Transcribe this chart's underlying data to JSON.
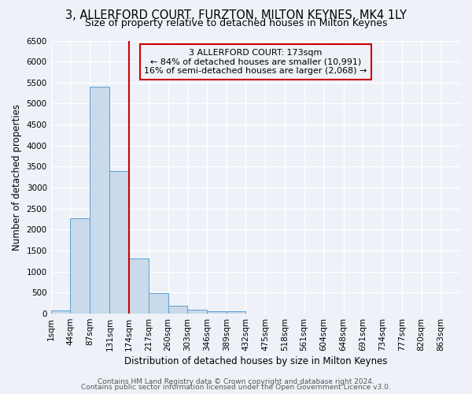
{
  "title": "3, ALLERFORD COURT, FURZTON, MILTON KEYNES, MK4 1LY",
  "subtitle": "Size of property relative to detached houses in Milton Keynes",
  "xlabel": "Distribution of detached houses by size in Milton Keynes",
  "ylabel": "Number of detached properties",
  "bin_labels": [
    "1sqm",
    "44sqm",
    "87sqm",
    "131sqm",
    "174sqm",
    "217sqm",
    "260sqm",
    "303sqm",
    "346sqm",
    "389sqm",
    "432sqm",
    "475sqm",
    "518sqm",
    "561sqm",
    "604sqm",
    "648sqm",
    "691sqm",
    "734sqm",
    "777sqm",
    "820sqm",
    "863sqm"
  ],
  "bin_edges": [
    1,
    44,
    87,
    131,
    174,
    217,
    260,
    303,
    346,
    389,
    432,
    475,
    518,
    561,
    604,
    648,
    691,
    734,
    777,
    820,
    863
  ],
  "bar_heights": [
    75,
    2280,
    5400,
    3400,
    1310,
    490,
    190,
    100,
    60,
    50,
    0,
    0,
    0,
    0,
    0,
    0,
    0,
    0,
    0,
    0,
    0
  ],
  "bar_color": "#c9daea",
  "bar_edge_color": "#5a9fd4",
  "vline_x": 174,
  "vline_color": "#cc0000",
  "ylim": [
    0,
    6500
  ],
  "yticks": [
    0,
    500,
    1000,
    1500,
    2000,
    2500,
    3000,
    3500,
    4000,
    4500,
    5000,
    5500,
    6000,
    6500
  ],
  "annotation_title": "3 ALLERFORD COURT: 173sqm",
  "annotation_line1": "← 84% of detached houses are smaller (10,991)",
  "annotation_line2": "16% of semi-detached houses are larger (2,068) →",
  "annotation_box_color": "#cc0000",
  "footer1": "Contains HM Land Registry data © Crown copyright and database right 2024.",
  "footer2": "Contains public sector information licensed under the Open Government Licence v3.0.",
  "background_color": "#eef2f8",
  "grid_color": "#ffffff",
  "title_fontsize": 10.5,
  "subtitle_fontsize": 9,
  "axis_label_fontsize": 8.5,
  "tick_fontsize": 7.5,
  "annotation_fontsize": 8,
  "footer_fontsize": 6.5
}
